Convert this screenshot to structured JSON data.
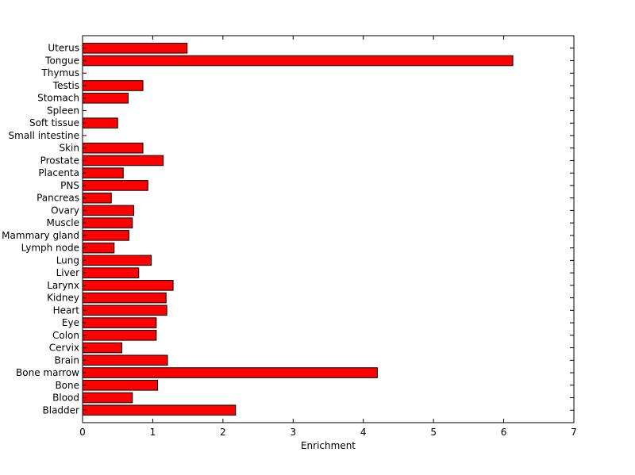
{
  "chart_data": {
    "type": "bar",
    "orientation": "horizontal",
    "categories": [
      "Bladder",
      "Blood",
      "Bone",
      "Bone marrow",
      "Brain",
      "Cervix",
      "Colon",
      "Eye",
      "Heart",
      "Kidney",
      "Larynx",
      "Liver",
      "Lung",
      "Lymph node",
      "Mammary gland",
      "Muscle",
      "Ovary",
      "Pancreas",
      "PNS",
      "Placenta",
      "Prostate",
      "Skin",
      "Small intestine",
      "Soft tissue",
      "Spleen",
      "Stomach",
      "Testis",
      "Thymus",
      "Tongue",
      "Uterus"
    ],
    "values": [
      2.18,
      0.71,
      1.07,
      4.2,
      1.21,
      0.56,
      1.05,
      1.05,
      1.2,
      1.19,
      1.29,
      0.8,
      0.98,
      0.45,
      0.66,
      0.71,
      0.73,
      0.41,
      0.93,
      0.58,
      1.15,
      0.86,
      0.0,
      0.5,
      0.0,
      0.65,
      0.86,
      0.0,
      6.13,
      1.49
    ],
    "xlabel": "Enrichment",
    "ylabel": "",
    "title": "",
    "xlim": [
      0,
      7
    ],
    "xticks": [
      0,
      1,
      2,
      3,
      4,
      5,
      6,
      7
    ],
    "bar_color": "#ff0000",
    "grid": false
  }
}
